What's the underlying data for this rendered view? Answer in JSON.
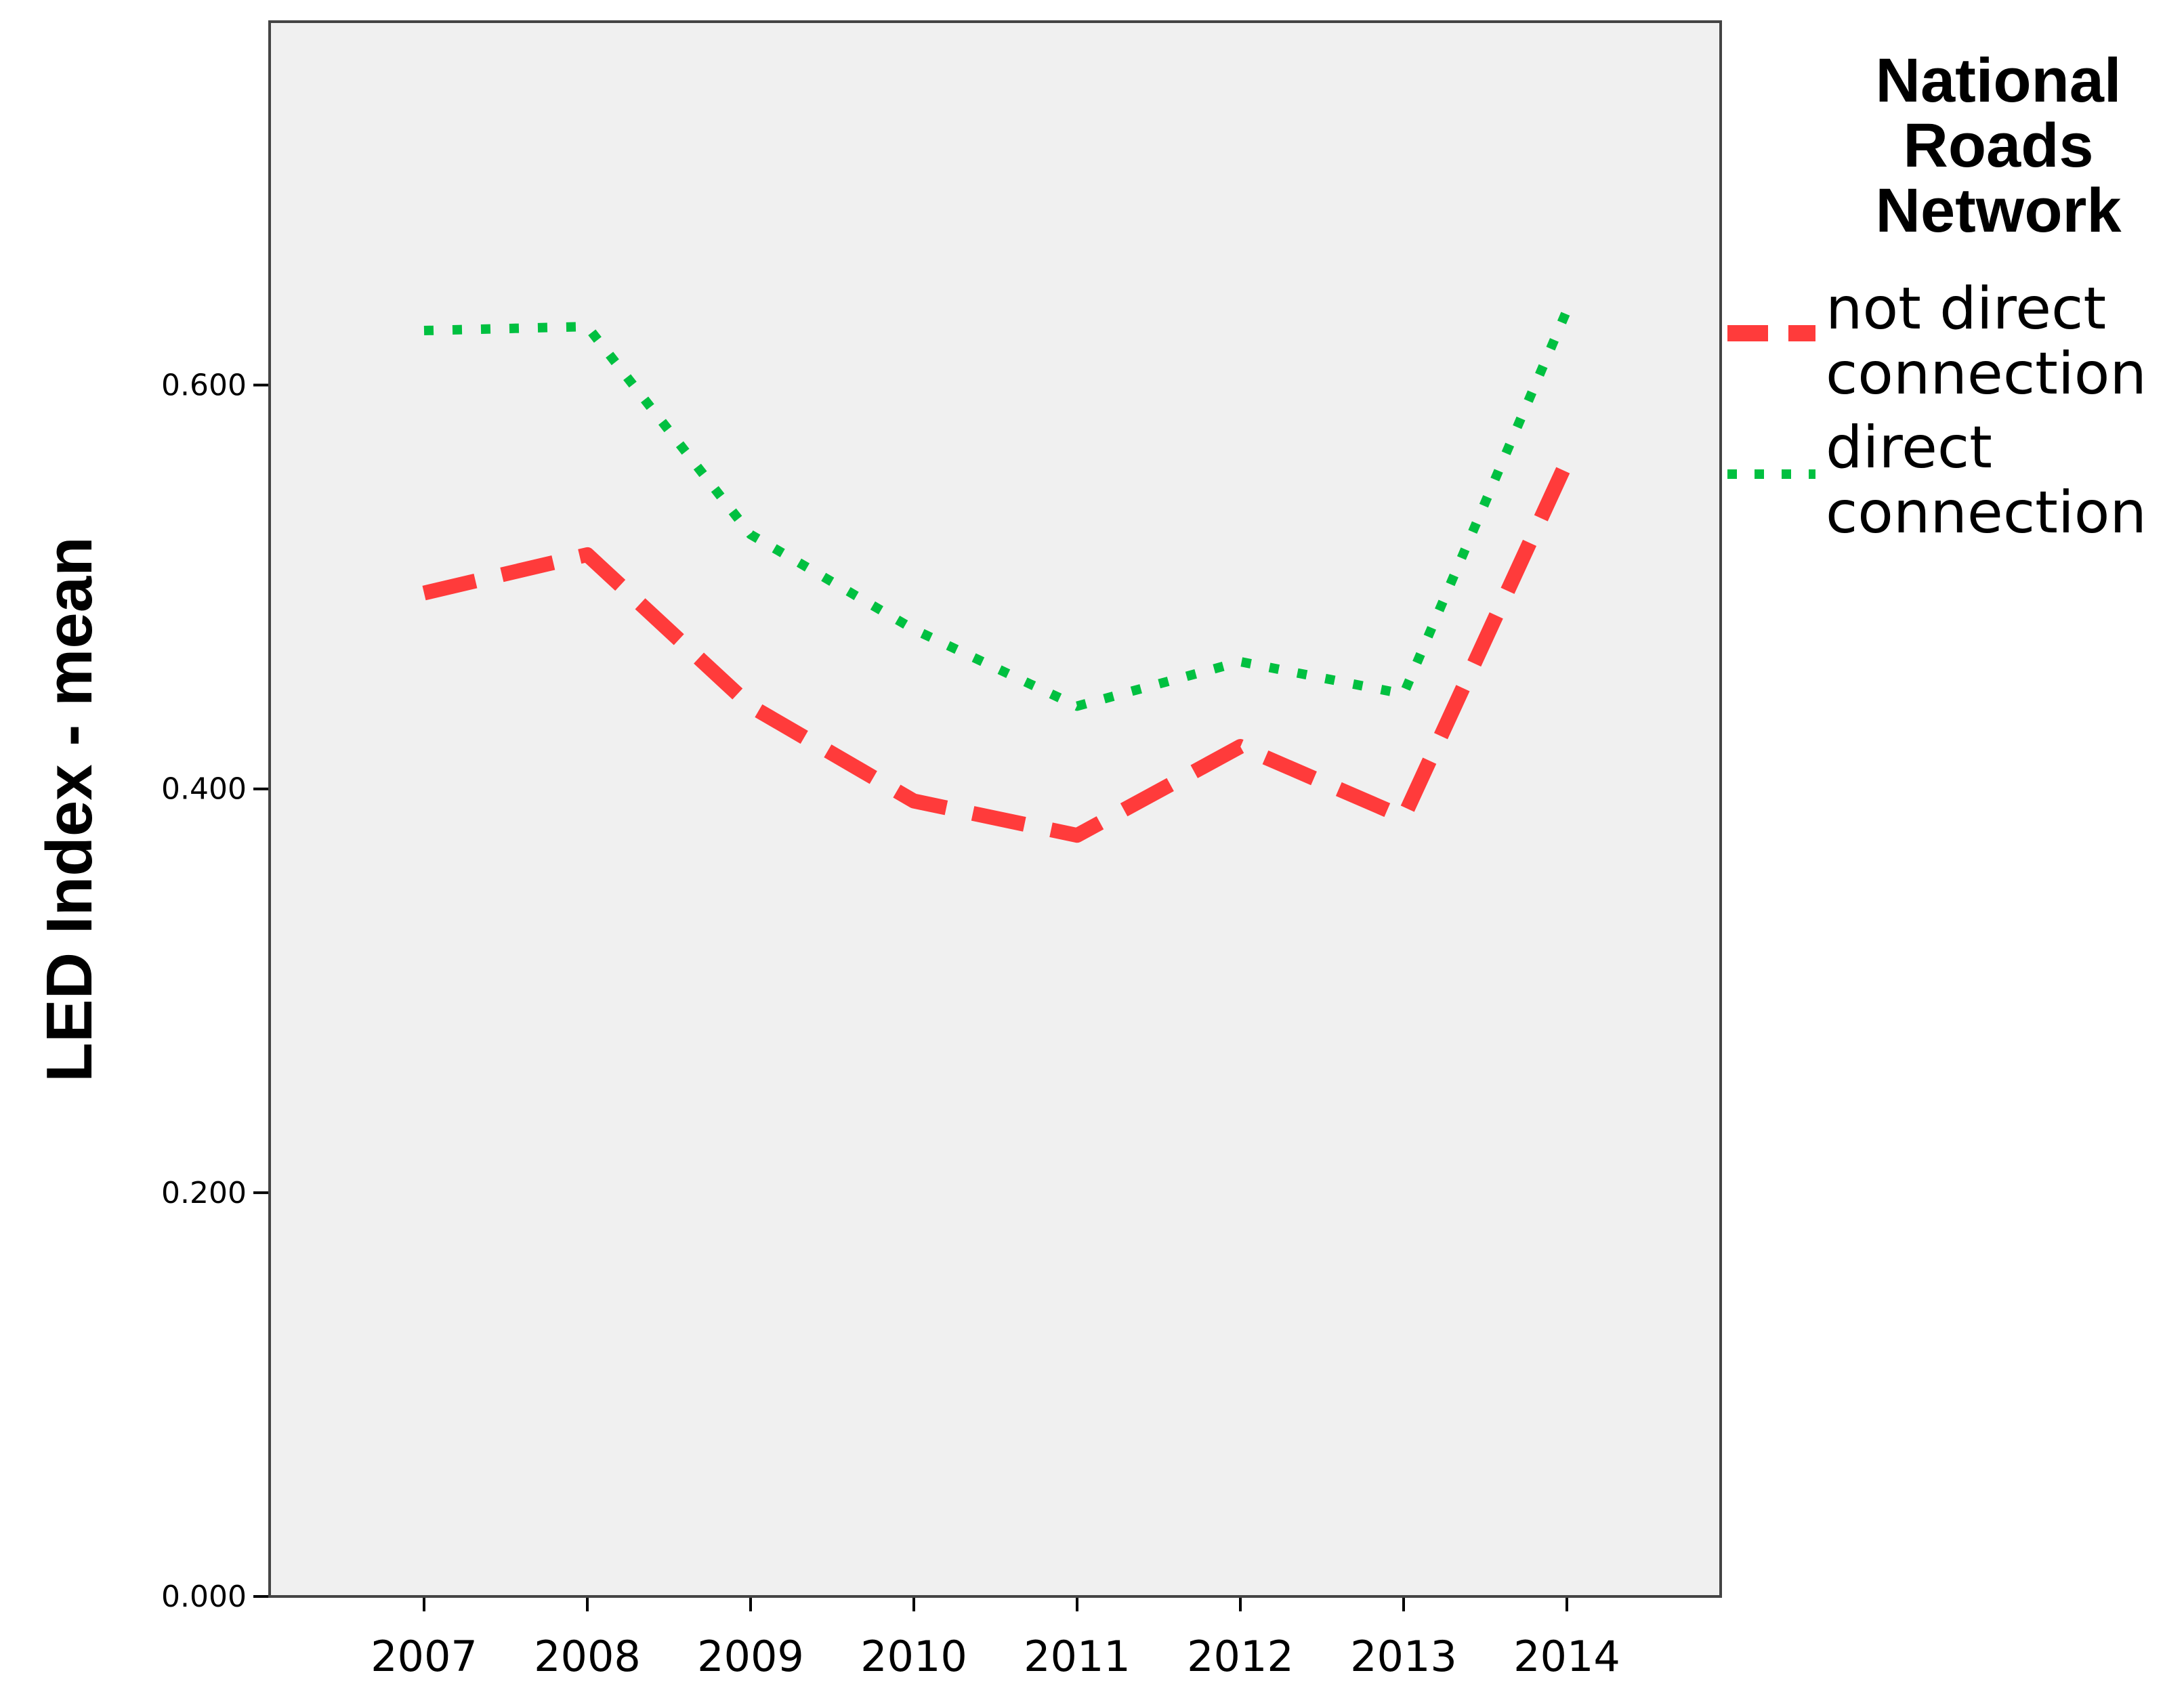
{
  "chart_data": {
    "type": "line",
    "title": "",
    "xlabel": "",
    "ylabel": "LED Index - mean",
    "categories": [
      "2007",
      "2008",
      "2009",
      "2010",
      "2011",
      "2012",
      "2013",
      "2014"
    ],
    "ylim": [
      0,
      0.78
    ],
    "yticks": [
      0.0,
      0.2,
      0.4,
      0.6
    ],
    "ytick_labels": [
      "0.000",
      "0.200",
      "0.400",
      "0.600"
    ],
    "grid": false,
    "legend": {
      "title_lines": [
        "National",
        "Roads",
        "Network"
      ],
      "placement": "right"
    },
    "series": [
      {
        "name_lines": [
          "not direct",
          "connection"
        ],
        "values": [
          0.497,
          0.516,
          0.441,
          0.394,
          0.377,
          0.421,
          0.386,
          0.562
        ],
        "color": "#ff3b3b",
        "style": "dashed"
      },
      {
        "name_lines": [
          "direct",
          "connection"
        ],
        "values": [
          0.627,
          0.629,
          0.526,
          0.479,
          0.441,
          0.463,
          0.447,
          0.637
        ],
        "color": "#00c040",
        "style": "dotted"
      }
    ],
    "colors": {
      "plot_background": "#f0f0f0",
      "frame": "#444444"
    }
  }
}
